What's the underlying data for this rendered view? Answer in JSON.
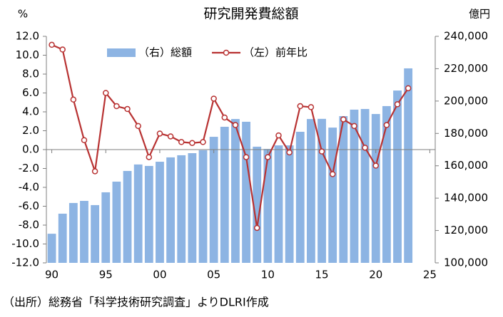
{
  "chart_data": {
    "type": "combo",
    "title": "研究開発費総額",
    "y_label": "%",
    "y2_label": "億円",
    "source": "（出所）総務省「科学技術研究調査」よりDLRI作成",
    "x": [
      1990,
      1991,
      1992,
      1993,
      1994,
      1995,
      1996,
      1997,
      1998,
      1999,
      2000,
      2001,
      2002,
      2003,
      2004,
      2005,
      2006,
      2007,
      2008,
      2009,
      2010,
      2011,
      2012,
      2013,
      2014,
      2015,
      2016,
      2017,
      2018,
      2019,
      2020,
      2021,
      2022,
      2023
    ],
    "series": [
      {
        "name": "（右）総額",
        "type": "bar",
        "axis": "y2",
        "color": "#8db4e3",
        "values": [
          118000,
          130400,
          137000,
          138300,
          135700,
          143600,
          150200,
          156800,
          160800,
          159900,
          162500,
          165200,
          166500,
          167800,
          169600,
          177900,
          184100,
          188900,
          187200,
          171800,
          170400,
          172600,
          172600,
          181000,
          188900,
          189000,
          183600,
          190700,
          194700,
          195100,
          192000,
          196900,
          206500,
          220200
        ]
      },
      {
        "name": "（左）前年比",
        "type": "line",
        "color": "#b83232",
        "values": [
          11.1,
          10.6,
          5.3,
          1.0,
          -2.3,
          6.0,
          4.6,
          4.3,
          2.5,
          -0.8,
          1.7,
          1.4,
          0.8,
          0.7,
          0.8,
          5.4,
          3.4,
          2.6,
          -0.8,
          -8.3,
          -0.8,
          1.5,
          -0.3,
          4.6,
          4.5,
          -0.2,
          -2.6,
          3.2,
          2.5,
          0.2,
          -1.7,
          2.6,
          4.8,
          6.5
        ]
      }
    ],
    "xlim": [
      1989.5,
      2025.5
    ],
    "xticks": [
      {
        "value": 1990,
        "label": "90"
      },
      {
        "value": 1995,
        "label": "95"
      },
      {
        "value": 2000,
        "label": "00"
      },
      {
        "value": 2005,
        "label": "05"
      },
      {
        "value": 2010,
        "label": "10"
      },
      {
        "value": 2015,
        "label": "15"
      },
      {
        "value": 2020,
        "label": "20"
      },
      {
        "value": 2025,
        "label": "25"
      }
    ],
    "ylim": [
      -12,
      12
    ],
    "yticks": [
      {
        "value": 12,
        "label": "12.0"
      },
      {
        "value": 10,
        "label": "10.0"
      },
      {
        "value": 8,
        "label": "8.0"
      },
      {
        "value": 6,
        "label": "6.0"
      },
      {
        "value": 4,
        "label": "4.0"
      },
      {
        "value": 2,
        "label": "2.0"
      },
      {
        "value": 0,
        "label": "0.0"
      },
      {
        "value": -2,
        "label": "-2.0"
      },
      {
        "value": -4,
        "label": "-4.0"
      },
      {
        "value": -6,
        "label": "-6.0"
      },
      {
        "value": -8,
        "label": "-8.0"
      },
      {
        "value": -10,
        "label": "-10.0"
      },
      {
        "value": -12,
        "label": "-12.0"
      }
    ],
    "y2lim": [
      100000,
      240000
    ],
    "y2ticks": [
      {
        "value": 100000,
        "label": "100,000"
      },
      {
        "value": 120000,
        "label": "120,000"
      },
      {
        "value": 140000,
        "label": "140,000"
      },
      {
        "value": 160000,
        "label": "160,000"
      },
      {
        "value": 180000,
        "label": "180,000"
      },
      {
        "value": 200000,
        "label": "200,000"
      },
      {
        "value": 220000,
        "label": "220,000"
      },
      {
        "value": 240000,
        "label": "240,000"
      }
    ],
    "grid": false,
    "legend": "upper left"
  }
}
